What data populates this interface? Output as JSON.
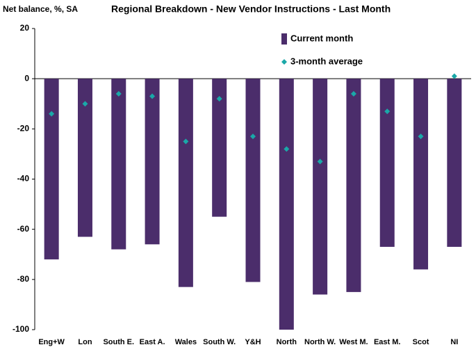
{
  "chart_data": {
    "type": "bar",
    "title": "Regional Breakdown - New Vendor Instructions - Last Month",
    "y_label": "Net balance, %, SA",
    "categories": [
      "Eng+W",
      "Lon",
      "South E.",
      "East A.",
      "Wales",
      "South W.",
      "Y&H",
      "North",
      "North W.",
      "West M.",
      "East M.",
      "Scot",
      "NI"
    ],
    "series": [
      {
        "name": "Current month",
        "type": "bar",
        "color": "#4b2d6b",
        "values": [
          -72,
          -63,
          -68,
          -66,
          -83,
          -55,
          -81,
          -100,
          -86,
          -85,
          -67,
          -76,
          -67
        ]
      },
      {
        "name": "3-month average",
        "type": "marker",
        "color": "#1aa8a8",
        "values": [
          -14,
          -10,
          -6,
          -7,
          -25,
          -8,
          -23,
          -28,
          -33,
          -6,
          -13,
          -23,
          1
        ]
      }
    ],
    "ylim": [
      -100,
      20
    ],
    "yticks": [
      20,
      0,
      -20,
      -40,
      -60,
      -80,
      -100
    ],
    "legend": "top-right"
  }
}
